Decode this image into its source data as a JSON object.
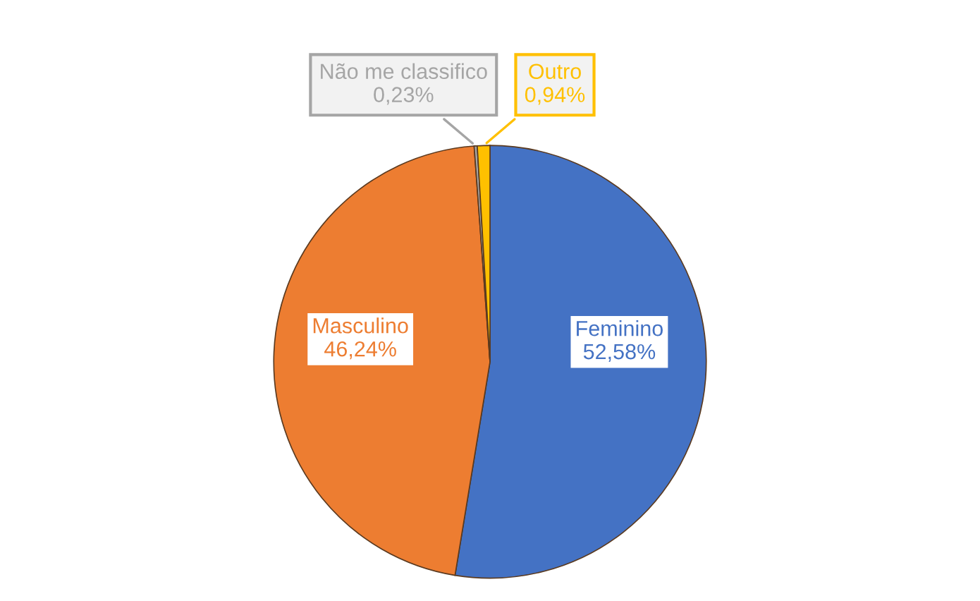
{
  "chart_data": {
    "type": "pie",
    "categories": [
      "Feminino",
      "Masculino",
      "Não me classifico",
      "Outro"
    ],
    "values": [
      52.58,
      46.24,
      0.23,
      0.94
    ],
    "value_labels": [
      "52,58%",
      "46,24%",
      "0,23%",
      "0,94%"
    ],
    "colors": [
      "#4472c4",
      "#ed7d31",
      "#a5a5a5",
      "#ffc000"
    ]
  }
}
